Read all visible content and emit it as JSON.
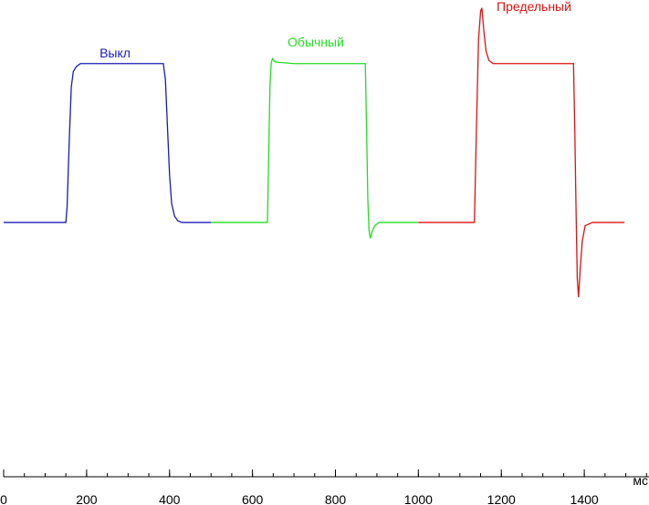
{
  "chart_data": {
    "type": "line",
    "x_label": "мс",
    "xlim": [
      0,
      1556
    ],
    "xticks": [
      0,
      200,
      400,
      600,
      800,
      1000,
      1200,
      1400
    ],
    "xminorticks": [
      0,
      50,
      100,
      150,
      200,
      250,
      300,
      350,
      400,
      450,
      500,
      550,
      600,
      650,
      700,
      750,
      800,
      850,
      900,
      950,
      1000,
      1050,
      1100,
      1150,
      1200,
      1250,
      1300,
      1350,
      1400,
      1450,
      1500,
      1550
    ],
    "ylim": [
      -1.6,
      1.4
    ],
    "series": [
      {
        "name": "Выкл",
        "color": "#1a1ab8",
        "x": [
          0,
          150,
          153,
          158,
          163,
          168,
          175,
          185,
          200,
          300,
          380,
          385,
          390,
          395,
          400,
          405,
          412,
          420,
          430,
          450,
          500
        ],
        "values": [
          0,
          0,
          0.1,
          0.5,
          0.85,
          0.95,
          0.98,
          1,
          1,
          1,
          1,
          1,
          0.9,
          0.6,
          0.3,
          0.12,
          0.04,
          0.01,
          0,
          0,
          0
        ]
      },
      {
        "name": "Обычный",
        "color": "#22dd22",
        "x": [
          500,
          636,
          639,
          642,
          645,
          648,
          655,
          700,
          800,
          872,
          875,
          878,
          881,
          884,
          888,
          895,
          905,
          950,
          1000
        ],
        "values": [
          0,
          0,
          0.4,
          0.85,
          1.0,
          1.03,
          1.01,
          1,
          1,
          1,
          0.6,
          0.15,
          -0.05,
          -0.1,
          -0.06,
          -0.02,
          0,
          0,
          0
        ]
      },
      {
        "name": "Предельный",
        "color": "#dd1111",
        "x": [
          1000,
          1135,
          1140,
          1145,
          1150,
          1153,
          1158,
          1163,
          1170,
          1180,
          1300,
          1374,
          1377,
          1380,
          1383,
          1386,
          1390,
          1395,
          1402,
          1420,
          1497
        ],
        "values": [
          0,
          0,
          0.6,
          1.15,
          1.33,
          1.35,
          1.2,
          1.08,
          1.02,
          1,
          1,
          1,
          0.6,
          0.1,
          -0.35,
          -0.47,
          -0.3,
          -0.12,
          -0.02,
          0,
          0
        ]
      }
    ]
  }
}
